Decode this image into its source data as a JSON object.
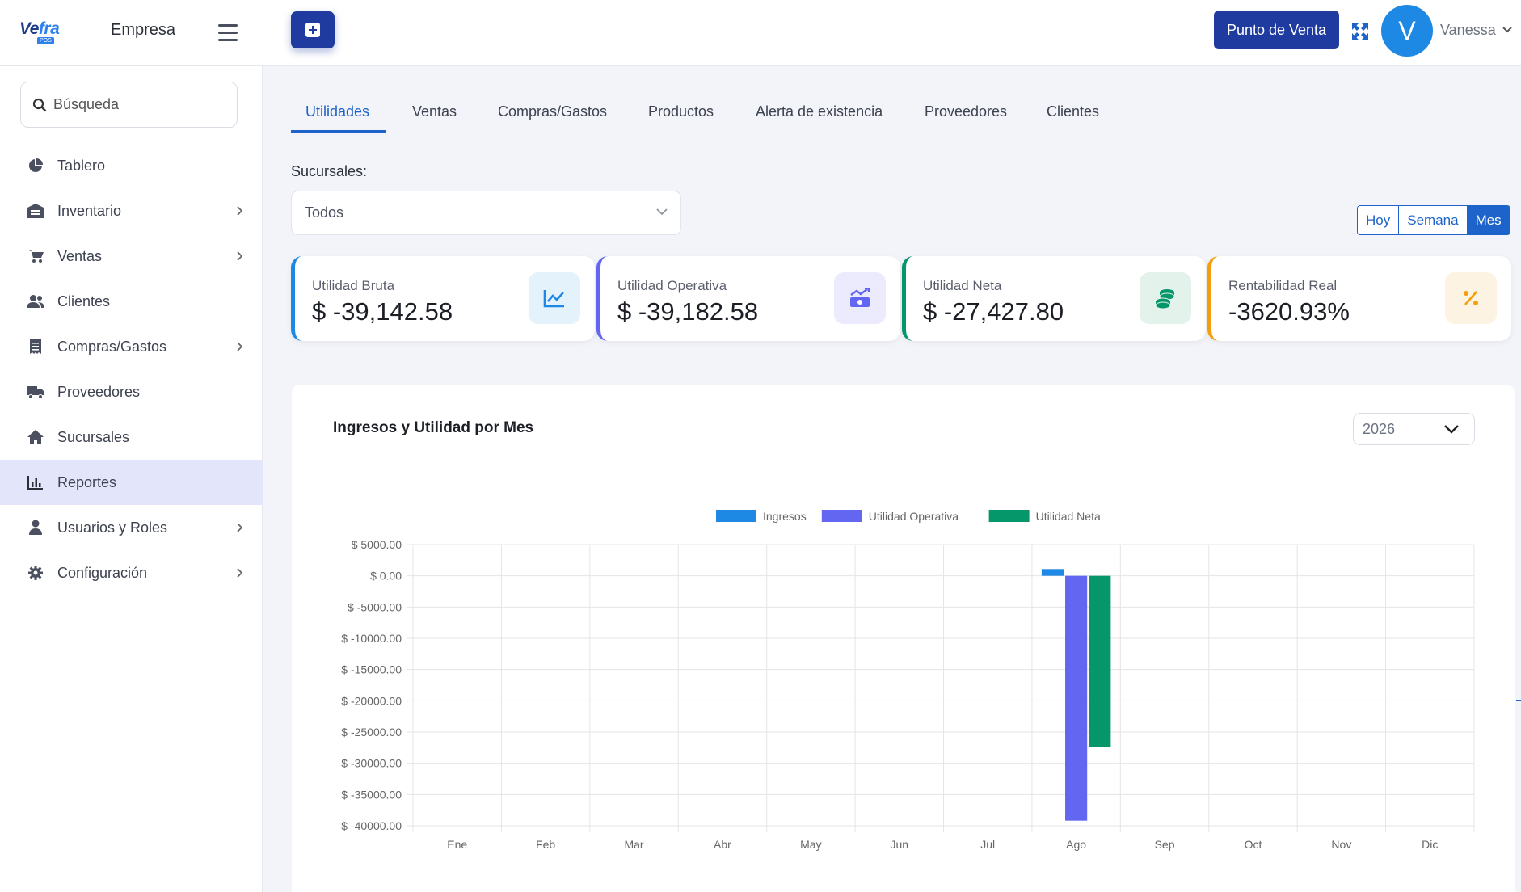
{
  "app": {
    "logo_text_main": "Ve",
    "logo_text_accent": "fra",
    "logo_sub": "POS",
    "company": "Empresa"
  },
  "header": {
    "pos_button": "Punto de Venta",
    "avatar_initial": "V",
    "user_name": "Vanessa"
  },
  "sidebar": {
    "search_placeholder": "Búsqueda",
    "items": [
      {
        "label": "Tablero",
        "icon": "pie-chart-icon",
        "has_submenu": false
      },
      {
        "label": "Inventario",
        "icon": "warehouse-icon",
        "has_submenu": true
      },
      {
        "label": "Ventas",
        "icon": "cart-icon",
        "has_submenu": true
      },
      {
        "label": "Clientes",
        "icon": "users-icon",
        "has_submenu": false
      },
      {
        "label": "Compras/Gastos",
        "icon": "receipt-icon",
        "has_submenu": true
      },
      {
        "label": "Proveedores",
        "icon": "truck-icon",
        "has_submenu": false
      },
      {
        "label": "Sucursales",
        "icon": "home-icon",
        "has_submenu": false
      },
      {
        "label": "Reportes",
        "icon": "bar-chart-icon",
        "has_submenu": false,
        "active": true
      },
      {
        "label": "Usuarios y Roles",
        "icon": "user-icon",
        "has_submenu": true
      },
      {
        "label": "Configuración",
        "icon": "gear-icon",
        "has_submenu": true
      }
    ]
  },
  "tabs": [
    "Utilidades",
    "Ventas",
    "Compras/Gastos",
    "Productos",
    "Alerta de existencia",
    "Proveedores",
    "Clientes"
  ],
  "filters": {
    "branch_label": "Sucursales:",
    "branch_value": "Todos",
    "period_options": [
      "Hoy",
      "Semana",
      "Mes"
    ],
    "period_selected": "Mes"
  },
  "kpis": [
    {
      "label": "Utilidad Bruta",
      "value": "$ -39,142.58",
      "icon": "trend-line-icon",
      "color": "#1e88e5",
      "bg": "#e3f2fb"
    },
    {
      "label": "Utilidad Operativa",
      "value": "$ -39,182.58",
      "icon": "money-trend-icon",
      "color": "#6366f1",
      "bg": "#ecebfd"
    },
    {
      "label": "Utilidad Neta",
      "value": "$ -27,427.80",
      "icon": "coins-icon",
      "color": "#059669",
      "bg": "#e3f3ec"
    },
    {
      "label": "Rentabilidad Real",
      "value": "-3620.93%",
      "icon": "percent-icon",
      "color": "#f59e0b",
      "bg": "#fdf3e3"
    }
  ],
  "chart_card": {
    "title": "Ingresos y Utilidad por Mes",
    "year": "2026"
  },
  "chart_data": {
    "type": "bar",
    "title": "Ingresos y Utilidad por Mes",
    "categories": [
      "Ene",
      "Feb",
      "Mar",
      "Abr",
      "May",
      "Jun",
      "Jul",
      "Ago",
      "Sep",
      "Oct",
      "Nov",
      "Dic"
    ],
    "series": [
      {
        "name": "Ingresos",
        "color": "#1e88e5",
        "values": [
          0,
          0,
          0,
          0,
          0,
          0,
          0,
          1080,
          0,
          0,
          0,
          0
        ]
      },
      {
        "name": "Utilidad Operativa",
        "color": "#6366f1",
        "values": [
          0,
          0,
          0,
          0,
          0,
          0,
          0,
          -39182.58,
          0,
          0,
          0,
          0
        ]
      },
      {
        "name": "Utilidad Neta",
        "color": "#059669",
        "values": [
          0,
          0,
          0,
          0,
          0,
          0,
          0,
          -27427.8,
          0,
          0,
          0,
          0
        ]
      }
    ],
    "yticks": [
      "$ 5000.00",
      "$ 0.00",
      "$ -5000.00",
      "$ -10000.00",
      "$ -15000.00",
      "$ -20000.00",
      "$ -25000.00",
      "$ -30000.00",
      "$ -35000.00",
      "$ -40000.00"
    ],
    "ylim": [
      -40000,
      5000
    ],
    "grid": true,
    "legend_position": "top-center"
  }
}
